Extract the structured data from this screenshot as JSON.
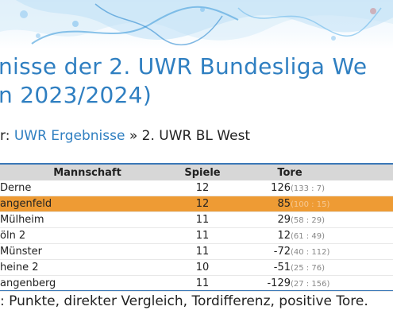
{
  "header": {
    "title": "nisse der 2. UWR Bundesliga We\nn 2023/2024)"
  },
  "breadcrumb": {
    "prefix": "r: ",
    "link": "UWR Ergebnisse",
    "separator": " » ",
    "current": "2. UWR BL West"
  },
  "table": {
    "headers": {
      "team": "Mannschaft",
      "games": "Spiele",
      "goals": "Tore"
    },
    "rows": [
      {
        "team": "Derne",
        "games": "12",
        "goal_diff": "126",
        "goals_detail": "(133 : 7)"
      },
      {
        "team": "angenfeld",
        "games": "12",
        "goal_diff": "85",
        "goals_detail": "(100 : 15)"
      },
      {
        "team": "Mülheim",
        "games": "11",
        "goal_diff": "29",
        "goals_detail": "(58 : 29)"
      },
      {
        "team": "öln 2",
        "games": "11",
        "goal_diff": "12",
        "goals_detail": "(61 : 49)"
      },
      {
        "team": "Münster",
        "games": "11",
        "goal_diff": "-72",
        "goals_detail": "(40 : 112)"
      },
      {
        "team": "heine 2",
        "games": "10",
        "goal_diff": "-51",
        "goals_detail": "(25 : 76)"
      },
      {
        "team": "angenberg",
        "games": "11",
        "goal_diff": "-129",
        "goals_detail": "(27 : 156)"
      }
    ],
    "highlight_color": "#ee9b34",
    "border_color": "#3b78b7"
  },
  "footnote": ": Punkte, direkter Vergleich, Tordifferenz, positive Tore.",
  "colors": {
    "link": "#2f7fc1",
    "title": "#2f7fc1"
  }
}
